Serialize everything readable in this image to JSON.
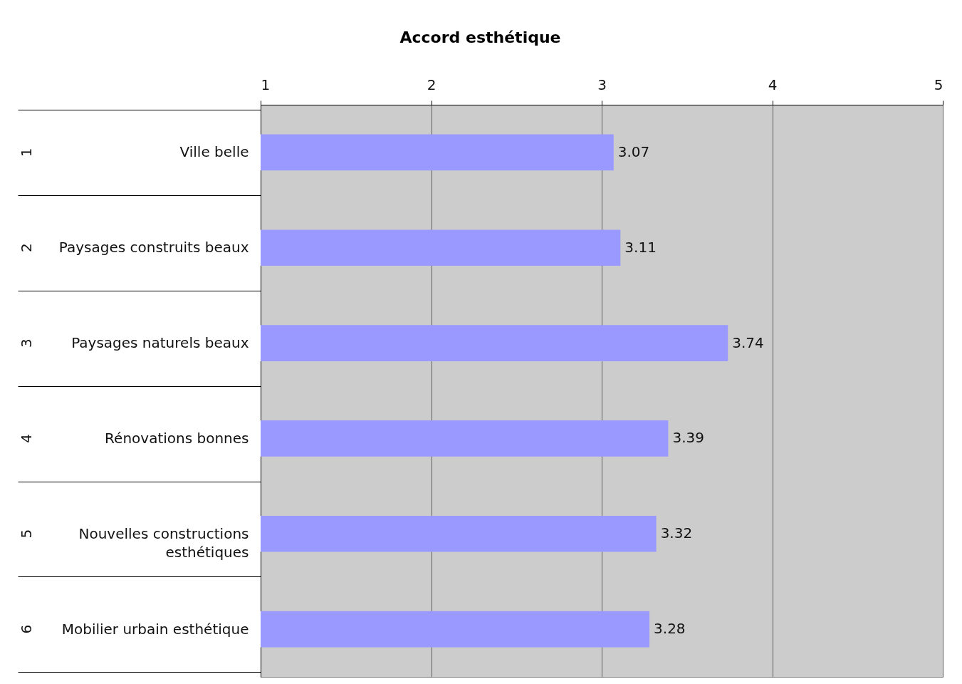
{
  "chart_data": {
    "type": "bar",
    "orientation": "horizontal",
    "title": "Accord esthétique",
    "categories": [
      "Ville belle",
      "Paysages construits beaux",
      "Paysages naturels beaux",
      "Rénovations bonnes",
      "Nouvelles constructions esthétiques",
      "Mobilier urbain esthétique"
    ],
    "values": [
      3.07,
      3.11,
      3.74,
      3.39,
      3.32,
      3.28
    ],
    "color": "#9999ff",
    "xlim": [
      1,
      5
    ],
    "xticks": [
      1,
      2,
      3,
      4,
      5
    ],
    "grid": "x",
    "data_labels": true,
    "annotations": [
      "1",
      "2",
      "3",
      "4",
      "5",
      "6"
    ]
  }
}
